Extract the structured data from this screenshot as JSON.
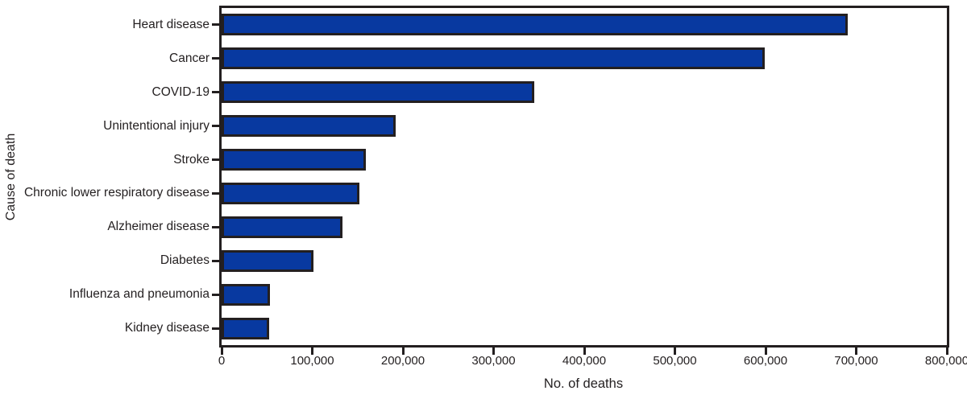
{
  "figure": {
    "x_axis_title": "No. of deaths",
    "y_axis_title": "Cause of death"
  },
  "chart_data": {
    "type": "bar",
    "orientation": "horizontal",
    "title": "",
    "xlabel": "No. of deaths",
    "ylabel": "Cause of death",
    "categories": [
      "Heart disease",
      "Cancer",
      "COVID-19",
      "Unintentional injury",
      "Stroke",
      "Chronic lower respiratory disease",
      "Alzheimer disease",
      "Diabetes",
      "Influenza and pneumonia",
      "Kidney disease"
    ],
    "values": [
      690882,
      598932,
      345323,
      192176,
      159050,
      151637,
      133382,
      101106,
      53495,
      52260
    ],
    "xlim": [
      0,
      800000
    ],
    "xticks": [
      0,
      100000,
      200000,
      300000,
      400000,
      500000,
      600000,
      700000,
      800000
    ],
    "xtick_labels": [
      "0",
      "100,000",
      "200,000",
      "300,000",
      "400,000",
      "500,000",
      "600,000",
      "700,000",
      "800,000"
    ],
    "grid": false,
    "legend": null,
    "bar_color": "#0839A0",
    "bar_border_color": "#231F20",
    "axis_color": "#231F20"
  }
}
